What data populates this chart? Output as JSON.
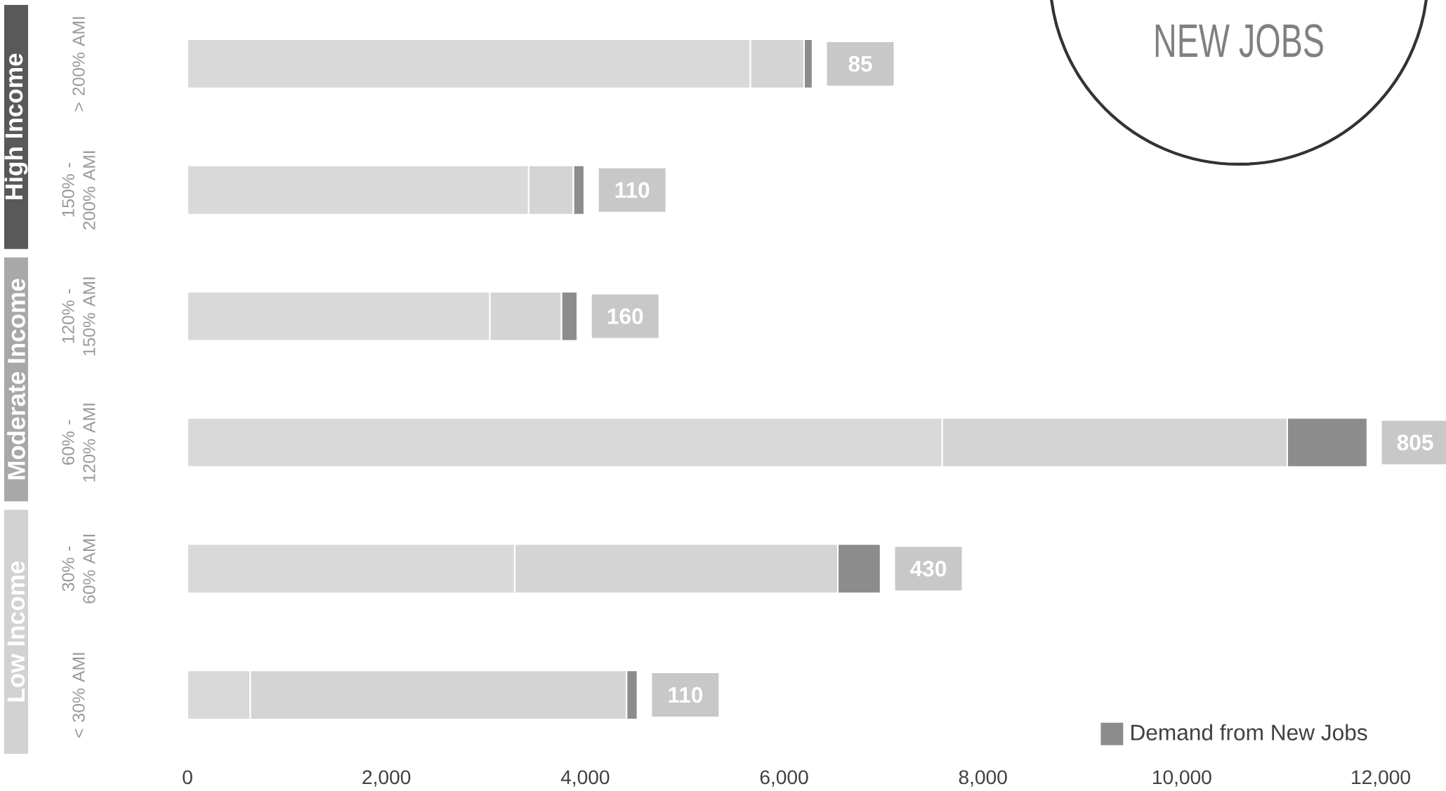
{
  "chart_data": {
    "type": "bar",
    "orientation": "horizontal",
    "stacked": true,
    "categories": [
      "> 200% AMI",
      "150% - 200% AMI",
      "120% - 150% AMI",
      "60% - 120% AMI",
      "30% - 60% AMI",
      "< 30% AMI"
    ],
    "series": [
      {
        "color": "#d9d9d9",
        "values": [
          5660,
          3430,
          3040,
          7590,
          3290,
          630
        ]
      },
      {
        "color": "#d4d4d4",
        "values": [
          540,
          450,
          720,
          3470,
          3250,
          3785
        ]
      },
      {
        "name": "Demand from New Jobs",
        "color": "#8c8c8c",
        "values": [
          85,
          110,
          160,
          805,
          430,
          110
        ],
        "value_labels": [
          "85",
          "110",
          "160",
          "805",
          "430",
          "110"
        ]
      }
    ],
    "xlim": [
      0,
      12000
    ],
    "xticks": [
      0,
      {
        "value": 2000,
        "label": "2,000"
      },
      {
        "value": 4000,
        "label": "4,000"
      },
      {
        "value": 6000,
        "label": "6,000"
      },
      {
        "value": 8000,
        "label": "8,000"
      },
      {
        "value": 10000,
        "label": "10,000"
      },
      {
        "value": 12000,
        "label": "12,000"
      }
    ],
    "legend": "bottom right",
    "annotations": [
      "High Income",
      "Moderate Income",
      "Low Income",
      "NEW JOBS"
    ]
  }
}
